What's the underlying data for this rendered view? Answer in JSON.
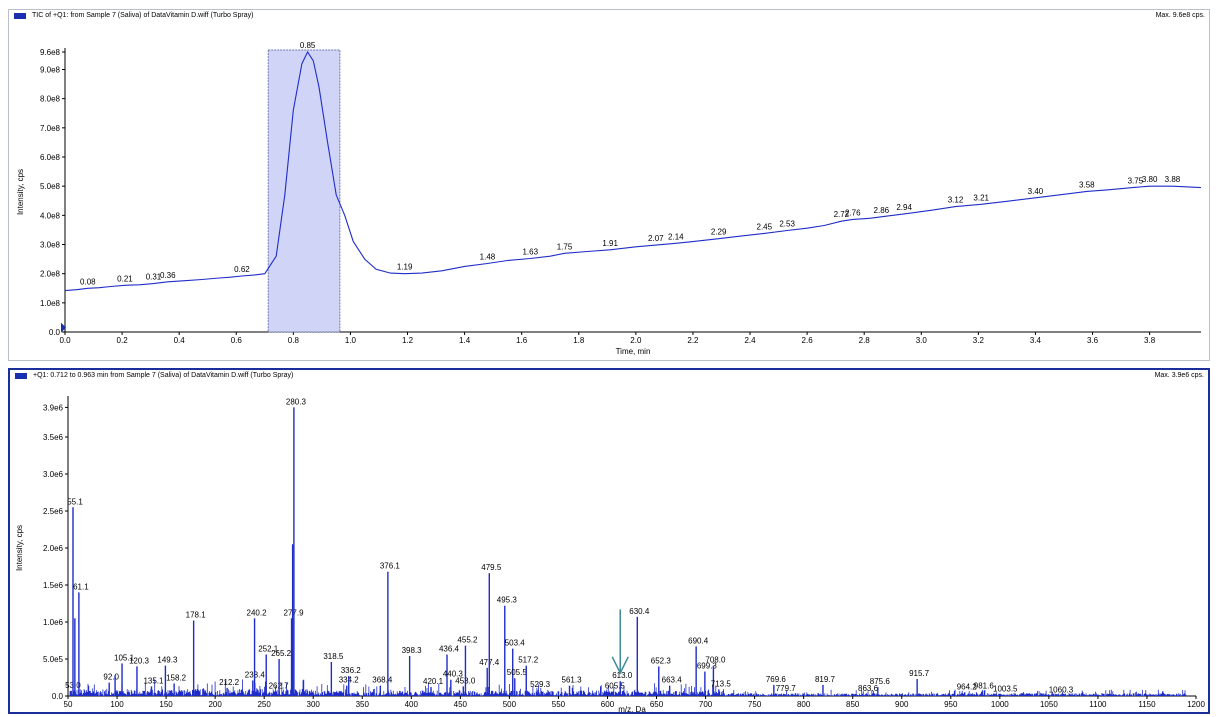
{
  "tic_panel": {
    "title": "TIC of +Q1: from Sample 7 (Saliva) of DataVitamin D.wiff (Turbo Spray)",
    "max_label": "Max. 9.6e8 cps."
  },
  "spectrum_panel": {
    "title": "+Q1: 0.712 to 0.963 min from Sample 7 (Saliva) of DataVitamin D.wiff (Turbo Spray)",
    "max_label": "Max. 3.9e6 cps."
  },
  "colors": {
    "trace": "#1f2dc8",
    "selection_fill": "#c8ccf4",
    "selection_border": "#6f77b0",
    "arrow": "#3d8a98",
    "frame": "#1a2f9a"
  },
  "chart_data": [
    {
      "type": "line",
      "xlabel": "Time, min",
      "ylabel": "Intensity, cps",
      "xlim": [
        0.0,
        3.98
      ],
      "ylim": [
        0,
        960000000.0
      ],
      "x_ticks": [
        0.0,
        0.2,
        0.4,
        0.6,
        0.8,
        1.0,
        1.2,
        1.4,
        1.6,
        1.8,
        2.0,
        2.2,
        2.4,
        2.6,
        2.8,
        3.0,
        3.2,
        3.4,
        3.6,
        3.8
      ],
      "x_tick_labels": [
        "0.0",
        "0.2",
        "0.4",
        "0.6",
        "0.8",
        "1.0",
        "1.2",
        "1.4",
        "1.6",
        "1.8",
        "2.0",
        "2.2",
        "2.4",
        "2.6",
        "2.8",
        "3.0",
        "3.2",
        "3.4",
        "3.6",
        "3.8"
      ],
      "y_ticks": [
        0,
        100000000.0,
        200000000.0,
        300000000.0,
        400000000.0,
        500000000.0,
        600000000.0,
        700000000.0,
        800000000.0,
        900000000.0,
        960000000.0
      ],
      "y_tick_labels": [
        "0.0",
        "1.0e8",
        "2.0e8",
        "3.0e8",
        "4.0e8",
        "5.0e8",
        "6.0e8",
        "7.0e8",
        "8.0e8",
        "9.0e8",
        "9.6e8"
      ],
      "grid": false,
      "selection": {
        "x_start": 0.712,
        "x_end": 0.963
      },
      "series": [
        {
          "x": [
            0.0,
            0.04,
            0.08,
            0.12,
            0.16,
            0.21,
            0.26,
            0.31,
            0.36,
            0.42,
            0.48,
            0.54,
            0.58,
            0.62,
            0.66,
            0.7,
            0.74,
            0.77,
            0.8,
            0.83,
            0.85,
            0.87,
            0.89,
            0.92,
            0.95,
            0.98,
            1.01,
            1.05,
            1.09,
            1.14,
            1.19,
            1.25,
            1.32,
            1.4,
            1.48,
            1.55,
            1.63,
            1.7,
            1.75,
            1.83,
            1.91,
            2.0,
            2.07,
            2.14,
            2.2,
            2.29,
            2.36,
            2.45,
            2.53,
            2.6,
            2.66,
            2.72,
            2.76,
            2.82,
            2.86,
            2.94,
            3.04,
            3.12,
            3.21,
            3.3,
            3.4,
            3.5,
            3.58,
            3.66,
            3.75,
            3.8,
            3.88,
            3.98
          ],
          "y": [
            142000000.0,
            145000000.0,
            150000000.0,
            152000000.0,
            156000000.0,
            160000000.0,
            162000000.0,
            166000000.0,
            172000000.0,
            176000000.0,
            180000000.0,
            185000000.0,
            188000000.0,
            192000000.0,
            195000000.0,
            200000000.0,
            260000000.0,
            470000000.0,
            760000000.0,
            920000000.0,
            960000000.0,
            930000000.0,
            840000000.0,
            650000000.0,
            470000000.0,
            400000000.0,
            310000000.0,
            250000000.0,
            215000000.0,
            202000000.0,
            200000000.0,
            202000000.0,
            210000000.0,
            225000000.0,
            235000000.0,
            245000000.0,
            252000000.0,
            260000000.0,
            270000000.0,
            276000000.0,
            282000000.0,
            292000000.0,
            298000000.0,
            304000000.0,
            310000000.0,
            320000000.0,
            328000000.0,
            338000000.0,
            348000000.0,
            356000000.0,
            365000000.0,
            380000000.0,
            386000000.0,
            390000000.0,
            395000000.0,
            405000000.0,
            418000000.0,
            430000000.0,
            438000000.0,
            448000000.0,
            460000000.0,
            472000000.0,
            482000000.0,
            488000000.0,
            496000000.0,
            500000000.0,
            500000000.0,
            495000000.0
          ]
        }
      ],
      "annotations": [
        {
          "x": 0.08,
          "y": 150000000.0,
          "text": "0.08"
        },
        {
          "x": 0.21,
          "y": 160000000.0,
          "text": "0.21"
        },
        {
          "x": 0.31,
          "y": 166000000.0,
          "text": "0.31"
        },
        {
          "x": 0.36,
          "y": 172000000.0,
          "text": "0.36"
        },
        {
          "x": 0.62,
          "y": 192000000.0,
          "text": "0.62"
        },
        {
          "x": 0.85,
          "y": 960000000.0,
          "text": "0.85"
        },
        {
          "x": 1.19,
          "y": 200000000.0,
          "text": "1.19"
        },
        {
          "x": 1.48,
          "y": 235000000.0,
          "text": "1.48"
        },
        {
          "x": 1.63,
          "y": 252000000.0,
          "text": "1.63"
        },
        {
          "x": 1.75,
          "y": 270000000.0,
          "text": "1.75"
        },
        {
          "x": 1.91,
          "y": 282000000.0,
          "text": "1.91"
        },
        {
          "x": 2.07,
          "y": 298000000.0,
          "text": "2.07"
        },
        {
          "x": 2.14,
          "y": 304000000.0,
          "text": "2.14"
        },
        {
          "x": 2.29,
          "y": 320000000.0,
          "text": "2.29"
        },
        {
          "x": 2.45,
          "y": 338000000.0,
          "text": "2.45"
        },
        {
          "x": 2.53,
          "y": 348000000.0,
          "text": "2.53"
        },
        {
          "x": 2.72,
          "y": 380000000.0,
          "text": "2.72"
        },
        {
          "x": 2.76,
          "y": 386000000.0,
          "text": "2.76"
        },
        {
          "x": 2.86,
          "y": 395000000.0,
          "text": "2.86"
        },
        {
          "x": 2.94,
          "y": 405000000.0,
          "text": "2.94"
        },
        {
          "x": 3.12,
          "y": 430000000.0,
          "text": "3.12"
        },
        {
          "x": 3.21,
          "y": 438000000.0,
          "text": "3.21"
        },
        {
          "x": 3.4,
          "y": 460000000.0,
          "text": "3.40"
        },
        {
          "x": 3.58,
          "y": 482000000.0,
          "text": "3.58"
        },
        {
          "x": 3.75,
          "y": 496000000.0,
          "text": "3.75"
        },
        {
          "x": 3.8,
          "y": 500000000.0,
          "text": "3.80"
        },
        {
          "x": 3.88,
          "y": 500000000.0,
          "text": "3.88"
        }
      ]
    },
    {
      "type": "bar",
      "xlabel": "m/z, Da",
      "ylabel": "Intensity, cps",
      "xlim": [
        50,
        1200
      ],
      "ylim": [
        0,
        4000000.0
      ],
      "x_ticks": [
        50,
        100,
        150,
        200,
        250,
        300,
        350,
        400,
        450,
        500,
        550,
        600,
        650,
        700,
        750,
        800,
        850,
        900,
        950,
        1000,
        1050,
        1100,
        1150,
        1200
      ],
      "x_tick_labels": [
        "50",
        "100",
        "150",
        "200",
        "250",
        "300",
        "350",
        "400",
        "450",
        "500",
        "550",
        "600",
        "650",
        "700",
        "750",
        "800",
        "850",
        "900",
        "950",
        "1000",
        "1050",
        "1100",
        "1150",
        "1200"
      ],
      "y_ticks": [
        0,
        500000.0,
        1000000.0,
        1500000.0,
        2000000.0,
        2500000.0,
        3000000.0,
        3500000.0,
        3900000.0
      ],
      "y_tick_labels": [
        "0.0",
        "5.0e5",
        "1.0e6",
        "1.5e6",
        "2.0e6",
        "2.5e6",
        "3.0e6",
        "3.5e6",
        "3.9e6"
      ],
      "grid": false,
      "peaks": [
        {
          "mz": 53.0,
          "y": 70000.0,
          "label": "53.0"
        },
        {
          "mz": 55.1,
          "y": 2550000.0,
          "label": "55.1"
        },
        {
          "mz": 57.0,
          "y": 1050000.0,
          "label": ""
        },
        {
          "mz": 61.1,
          "y": 1400000.0,
          "label": "61.1"
        },
        {
          "mz": 92.0,
          "y": 180000.0,
          "label": "92.0"
        },
        {
          "mz": 98.0,
          "y": 280000.0,
          "label": ""
        },
        {
          "mz": 105.1,
          "y": 440000.0,
          "label": "105.1"
        },
        {
          "mz": 120.3,
          "y": 400000.0,
          "label": "120.3"
        },
        {
          "mz": 135.1,
          "y": 130000.0,
          "label": "135.1"
        },
        {
          "mz": 149.3,
          "y": 410000.0,
          "label": "149.3"
        },
        {
          "mz": 158.2,
          "y": 170000.0,
          "label": "158.2"
        },
        {
          "mz": 178.1,
          "y": 1020000.0,
          "label": "178.1"
        },
        {
          "mz": 212.2,
          "y": 110000.0,
          "label": "212.2"
        },
        {
          "mz": 238.4,
          "y": 210000.0,
          "label": "238.4"
        },
        {
          "mz": 240.2,
          "y": 1050000.0,
          "label": "240.2"
        },
        {
          "mz": 252.1,
          "y": 560000.0,
          "label": "252.1"
        },
        {
          "mz": 262.7,
          "y": 60000.0,
          "label": "262.7"
        },
        {
          "mz": 265.2,
          "y": 500000.0,
          "label": "265.2"
        },
        {
          "mz": 277.9,
          "y": 1050000.0,
          "label": "277.9"
        },
        {
          "mz": 279.0,
          "y": 2050000.0,
          "label": ""
        },
        {
          "mz": 280.3,
          "y": 3900000.0,
          "label": "280.3"
        },
        {
          "mz": 318.5,
          "y": 460000.0,
          "label": "318.5"
        },
        {
          "mz": 334.2,
          "y": 140000.0,
          "label": "334.2"
        },
        {
          "mz": 336.2,
          "y": 270000.0,
          "label": "336.2"
        },
        {
          "mz": 368.4,
          "y": 140000.0,
          "label": "368.4"
        },
        {
          "mz": 376.1,
          "y": 1680000.0,
          "label": "376.1"
        },
        {
          "mz": 398.3,
          "y": 540000.0,
          "label": "398.3"
        },
        {
          "mz": 420.1,
          "y": 120000.0,
          "label": "420.1"
        },
        {
          "mz": 436.4,
          "y": 560000.0,
          "label": "436.4"
        },
        {
          "mz": 440.3,
          "y": 220000.0,
          "label": "440.3"
        },
        {
          "mz": 453.0,
          "y": 130000.0,
          "label": "453.0"
        },
        {
          "mz": 455.2,
          "y": 680000.0,
          "label": "455.2"
        },
        {
          "mz": 477.4,
          "y": 380000.0,
          "label": "477.4"
        },
        {
          "mz": 479.5,
          "y": 1660000.0,
          "label": "479.5"
        },
        {
          "mz": 495.3,
          "y": 1220000.0,
          "label": "495.3"
        },
        {
          "mz": 503.4,
          "y": 640000.0,
          "label": "503.4"
        },
        {
          "mz": 505.5,
          "y": 240000.0,
          "label": "505.5"
        },
        {
          "mz": 517.2,
          "y": 410000.0,
          "label": "517.2"
        },
        {
          "mz": 529.3,
          "y": 80000.0,
          "label": "529.3"
        },
        {
          "mz": 561.3,
          "y": 140000.0,
          "label": "561.3"
        },
        {
          "mz": 605.5,
          "y": 60000.0,
          "label": "605.5"
        },
        {
          "mz": 613.0,
          "y": 200000.0,
          "label": "613.0"
        },
        {
          "mz": 630.4,
          "y": 1070000.0,
          "label": "630.4"
        },
        {
          "mz": 652.3,
          "y": 400000.0,
          "label": "652.3"
        },
        {
          "mz": 663.4,
          "y": 140000.0,
          "label": "663.4"
        },
        {
          "mz": 690.4,
          "y": 670000.0,
          "label": "690.4"
        },
        {
          "mz": 699.3,
          "y": 330000.0,
          "label": "699.3"
        },
        {
          "mz": 708.0,
          "y": 410000.0,
          "label": "708.0"
        },
        {
          "mz": 713.5,
          "y": 90000.0,
          "label": "713.5"
        },
        {
          "mz": 769.6,
          "y": 150000.0,
          "label": "769.6"
        },
        {
          "mz": 779.7,
          "y": 30000.0,
          "label": "779.7"
        },
        {
          "mz": 819.7,
          "y": 150000.0,
          "label": "819.7"
        },
        {
          "mz": 863.6,
          "y": 30000.0,
          "label": "863.6"
        },
        {
          "mz": 875.6,
          "y": 120000.0,
          "label": "875.6"
        },
        {
          "mz": 915.7,
          "y": 230000.0,
          "label": "915.7"
        },
        {
          "mz": 964.2,
          "y": 50000.0,
          "label": "964.2"
        },
        {
          "mz": 981.6,
          "y": 60000.0,
          "label": "981.6"
        },
        {
          "mz": 1003.5,
          "y": 20000.0,
          "label": "1003.5"
        },
        {
          "mz": 1060.3,
          "y": 10000.0,
          "label": "1060.3"
        }
      ]
    }
  ]
}
